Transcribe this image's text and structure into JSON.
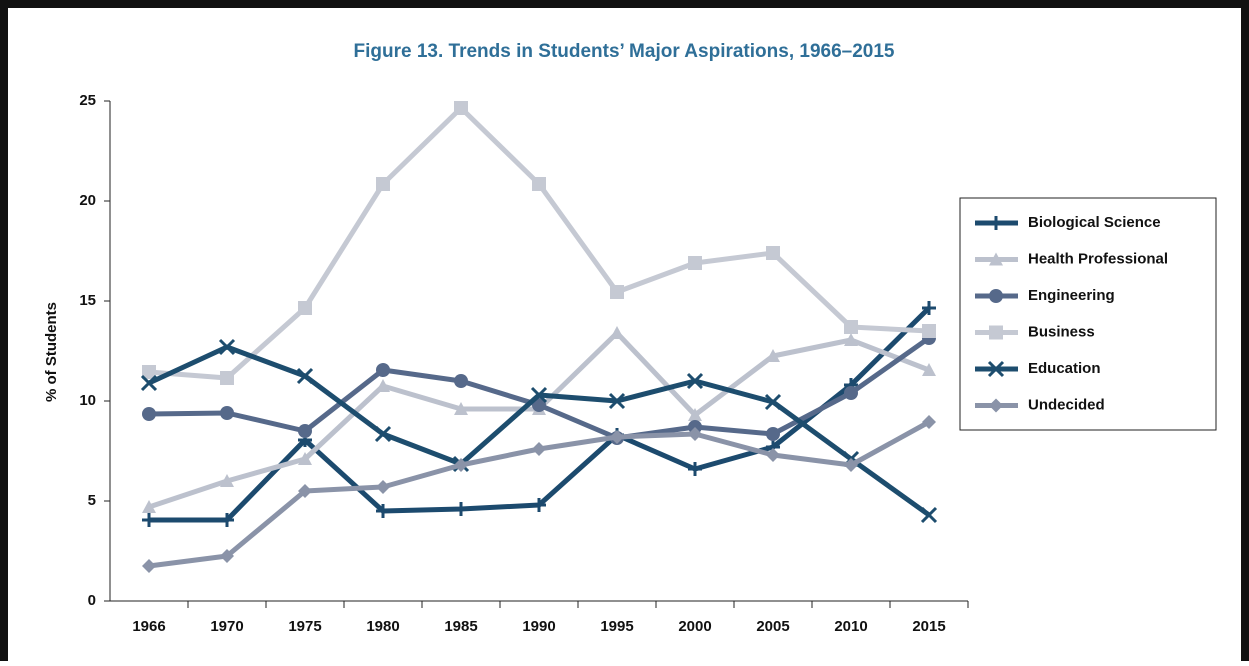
{
  "chart_data": {
    "type": "line",
    "title": "Figure 13. Trends in Students’ Major Aspirations, 1966–2015",
    "y_label": "% of Students",
    "categories": [
      "1966",
      "1970",
      "1975",
      "1980",
      "1985",
      "1990",
      "1995",
      "2000",
      "2005",
      "2010",
      "2015"
    ],
    "series": [
      {
        "name": "Biological Science",
        "color": "#1c4a6e",
        "marker": "plus",
        "values": [
          4.05,
          4.05,
          8.05,
          4.5,
          4.6,
          4.8,
          8.3,
          6.6,
          7.7,
          10.8,
          14.65
        ]
      },
      {
        "name": "Health Professional",
        "color": "#bcc1cd",
        "marker": "triangle",
        "values": [
          4.7,
          6.0,
          7.1,
          10.75,
          9.6,
          9.6,
          13.4,
          9.3,
          12.25,
          13.05,
          11.55
        ]
      },
      {
        "name": "Engineering",
        "color": "#56698a",
        "marker": "circle",
        "values": [
          9.35,
          9.4,
          8.5,
          11.55,
          11.0,
          9.8,
          8.15,
          8.7,
          8.35,
          10.4,
          13.15
        ]
      },
      {
        "name": "Business",
        "color": "#c5c9d3",
        "marker": "square",
        "values": [
          11.45,
          11.15,
          14.65,
          20.85,
          24.65,
          20.85,
          15.45,
          16.9,
          17.4,
          13.7,
          13.5
        ]
      },
      {
        "name": "Education",
        "color": "#1d4d6e",
        "marker": "x",
        "values": [
          10.9,
          12.7,
          11.25,
          8.35,
          6.85,
          10.3,
          10.0,
          11.0,
          9.95,
          7.1,
          4.3
        ]
      },
      {
        "name": "Undecided",
        "color": "#8a93a8",
        "marker": "diamond",
        "values": [
          1.75,
          2.25,
          5.5,
          5.7,
          6.8,
          7.6,
          8.2,
          8.35,
          7.3,
          6.8,
          8.95
        ]
      }
    ],
    "ylim": [
      0,
      25
    ],
    "yticks": [
      0,
      5,
      10,
      15,
      20,
      25
    ],
    "grid": false,
    "legend": "right"
  }
}
